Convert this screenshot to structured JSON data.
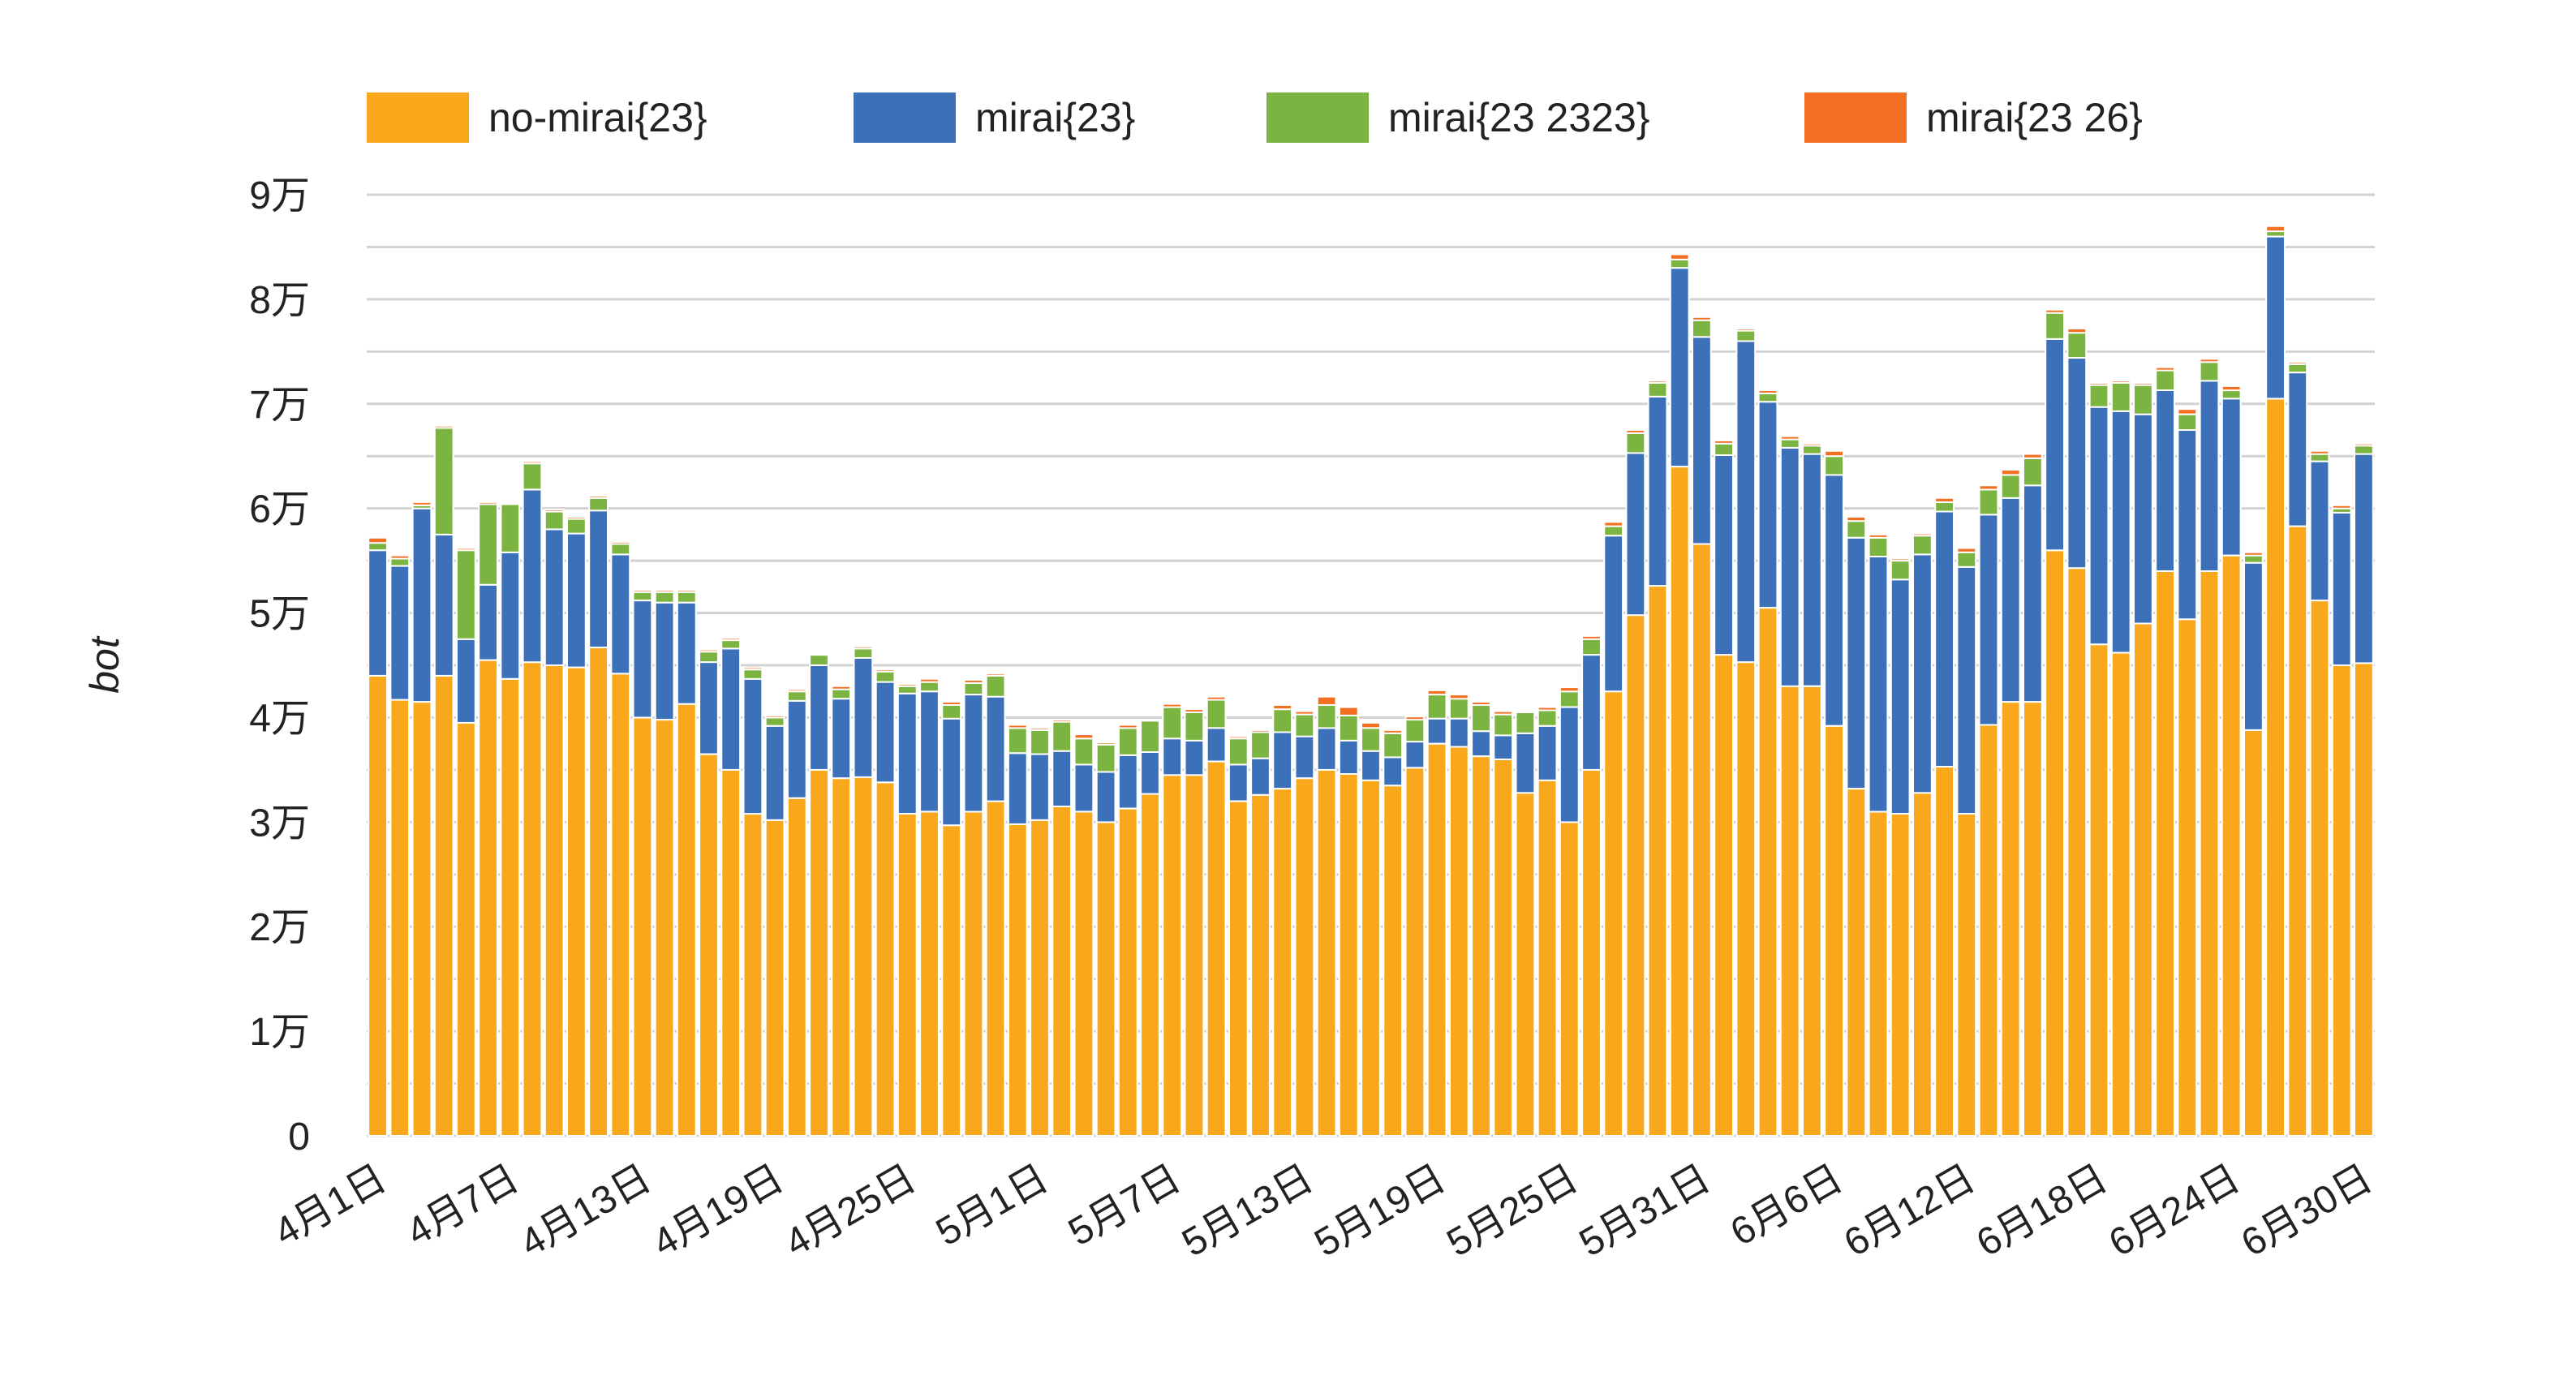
{
  "chart_data": {
    "type": "bar",
    "stacked": true,
    "title": "",
    "xlabel": "",
    "ylabel": "bot",
    "ylim": [
      0,
      90000
    ],
    "y_ticks": [
      0,
      10000,
      20000,
      30000,
      40000,
      50000,
      60000,
      70000,
      80000,
      90000
    ],
    "y_tick_labels": [
      "0",
      "1万",
      "2万",
      "3万",
      "4万",
      "5万",
      "6万",
      "7万",
      "8万",
      "9万"
    ],
    "grid": true,
    "minor_grid_step": 5000,
    "legend_position": "top",
    "categories": [
      "4月1日",
      "4月2日",
      "4月3日",
      "4月4日",
      "4月5日",
      "4月6日",
      "4月7日",
      "4月8日",
      "4月9日",
      "4月10日",
      "4月11日",
      "4月12日",
      "4月13日",
      "4月14日",
      "4月15日",
      "4月16日",
      "4月17日",
      "4月18日",
      "4月19日",
      "4月20日",
      "4月21日",
      "4月22日",
      "4月23日",
      "4月24日",
      "4月25日",
      "4月26日",
      "4月27日",
      "4月28日",
      "4月29日",
      "4月30日",
      "5月1日",
      "5月2日",
      "5月3日",
      "5月4日",
      "5月5日",
      "5月6日",
      "5月7日",
      "5月8日",
      "5月9日",
      "5月10日",
      "5月11日",
      "5月12日",
      "5月13日",
      "5月14日",
      "5月15日",
      "5月16日",
      "5月17日",
      "5月18日",
      "5月19日",
      "5月20日",
      "5月21日",
      "5月22日",
      "5月23日",
      "5月24日",
      "5月25日",
      "5月26日",
      "5月27日",
      "5月28日",
      "5月29日",
      "5月30日",
      "5月31日",
      "6月1日",
      "6月2日",
      "6月3日",
      "6月4日",
      "6月5日",
      "6月6日",
      "6月7日",
      "6月8日",
      "6月9日",
      "6月10日",
      "6月11日",
      "6月12日",
      "6月13日",
      "6月14日",
      "6月15日",
      "6月16日",
      "6月17日",
      "6月18日",
      "6月19日",
      "6月20日",
      "6月21日",
      "6月22日",
      "6月23日",
      "6月24日",
      "6月25日",
      "6月26日",
      "6月27日",
      "6月28日",
      "6月29日",
      "6月30日"
    ],
    "x_tick_labels": [
      "4月1日",
      "4月7日",
      "4月13日",
      "4月19日",
      "4月25日",
      "5月1日",
      "5月7日",
      "5月13日",
      "5月19日",
      "5月25日",
      "5月31日",
      "6月6日",
      "6月12日",
      "6月18日",
      "6月24日",
      "6月30日"
    ],
    "series": [
      {
        "name": "no-mirai{23}",
        "color": "#F9A81C",
        "values": [
          44000,
          41700,
          41500,
          44000,
          39500,
          45500,
          43700,
          45300,
          45000,
          44800,
          46700,
          44200,
          40000,
          39800,
          41300,
          36500,
          35000,
          30800,
          30200,
          32300,
          35000,
          34200,
          34300,
          33800,
          30800,
          31000,
          29700,
          31000,
          32000,
          29800,
          30200,
          31500,
          31000,
          30000,
          31300,
          32700,
          34500,
          34500,
          35800,
          32000,
          32600,
          33200,
          34200,
          35000,
          34600,
          34000,
          33500,
          35200,
          37500,
          37200,
          36300,
          36000,
          32800,
          34000,
          30000,
          35000,
          42500,
          49800,
          52600,
          64000,
          56600,
          46000,
          45300,
          50500,
          43000,
          43000,
          39200,
          33200,
          31000,
          30800,
          32800,
          35300,
          30800,
          39300,
          41500,
          41500,
          56000,
          54300,
          47000,
          46200,
          49000,
          54000,
          49400,
          54000,
          55500,
          38800,
          70500,
          58300,
          51200,
          45000,
          45200
        ]
      },
      {
        "name": "mirai{23}",
        "color": "#3C70B8",
        "values": [
          12000,
          12800,
          18500,
          13500,
          8000,
          7200,
          12100,
          16500,
          13000,
          12800,
          13100,
          11400,
          11200,
          11200,
          9700,
          8800,
          11600,
          12900,
          9000,
          9300,
          10000,
          7600,
          11400,
          9600,
          11500,
          11500,
          10200,
          11200,
          10000,
          6800,
          6300,
          5300,
          4500,
          4800,
          5100,
          4000,
          3500,
          3300,
          3200,
          3500,
          3500,
          5400,
          4000,
          4000,
          3200,
          2800,
          2700,
          2500,
          2400,
          2700,
          2400,
          2300,
          5700,
          5200,
          11000,
          11000,
          14900,
          15500,
          18100,
          19000,
          19800,
          19100,
          30700,
          19700,
          22800,
          22200,
          24000,
          24000,
          24400,
          22400,
          22800,
          24400,
          23600,
          20100,
          19500,
          20700,
          20200,
          20100,
          22700,
          23100,
          20000,
          17300,
          18100,
          18200,
          15000,
          16000,
          15500,
          14700,
          13300,
          14600,
          20000
        ]
      },
      {
        "name": "mirai{23 2323}",
        "color": "#7CB442",
        "values": [
          700,
          700,
          300,
          10200,
          8500,
          7700,
          4600,
          2500,
          1700,
          1400,
          1200,
          1000,
          800,
          1000,
          1000,
          1000,
          800,
          900,
          800,
          900,
          1000,
          900,
          900,
          1000,
          700,
          900,
          1300,
          1100,
          2000,
          2400,
          2300,
          2800,
          2500,
          2600,
          2600,
          3000,
          3000,
          2700,
          2700,
          2500,
          2500,
          2200,
          2100,
          2200,
          2400,
          2200,
          2300,
          2100,
          2300,
          1900,
          2500,
          2000,
          2000,
          1500,
          1500,
          1500,
          900,
          1900,
          1300,
          800,
          1600,
          1100,
          1000,
          800,
          800,
          800,
          1800,
          1600,
          1800,
          1800,
          1800,
          900,
          1400,
          2400,
          2200,
          2600,
          2500,
          2400,
          2100,
          2700,
          2800,
          1900,
          1500,
          1800,
          800,
          700,
          500,
          800,
          700,
          400,
          800
        ]
      },
      {
        "name": "mirai{23 26}",
        "color": "#F36F22",
        "values": [
          500,
          300,
          300,
          200,
          200,
          200,
          100,
          200,
          200,
          200,
          200,
          200,
          200,
          200,
          200,
          200,
          200,
          200,
          200,
          200,
          100,
          300,
          200,
          200,
          200,
          300,
          300,
          300,
          200,
          300,
          200,
          200,
          400,
          200,
          300,
          100,
          300,
          300,
          300,
          200,
          200,
          400,
          300,
          800,
          800,
          500,
          300,
          300,
          400,
          400,
          300,
          300,
          100,
          300,
          400,
          300,
          400,
          300,
          200,
          500,
          300,
          300,
          200,
          300,
          300,
          200,
          500,
          400,
          300,
          200,
          200,
          400,
          400,
          400,
          500,
          400,
          300,
          400,
          200,
          200,
          200,
          300,
          500,
          300,
          400,
          300,
          500,
          200,
          300,
          300,
          200
        ]
      }
    ]
  }
}
